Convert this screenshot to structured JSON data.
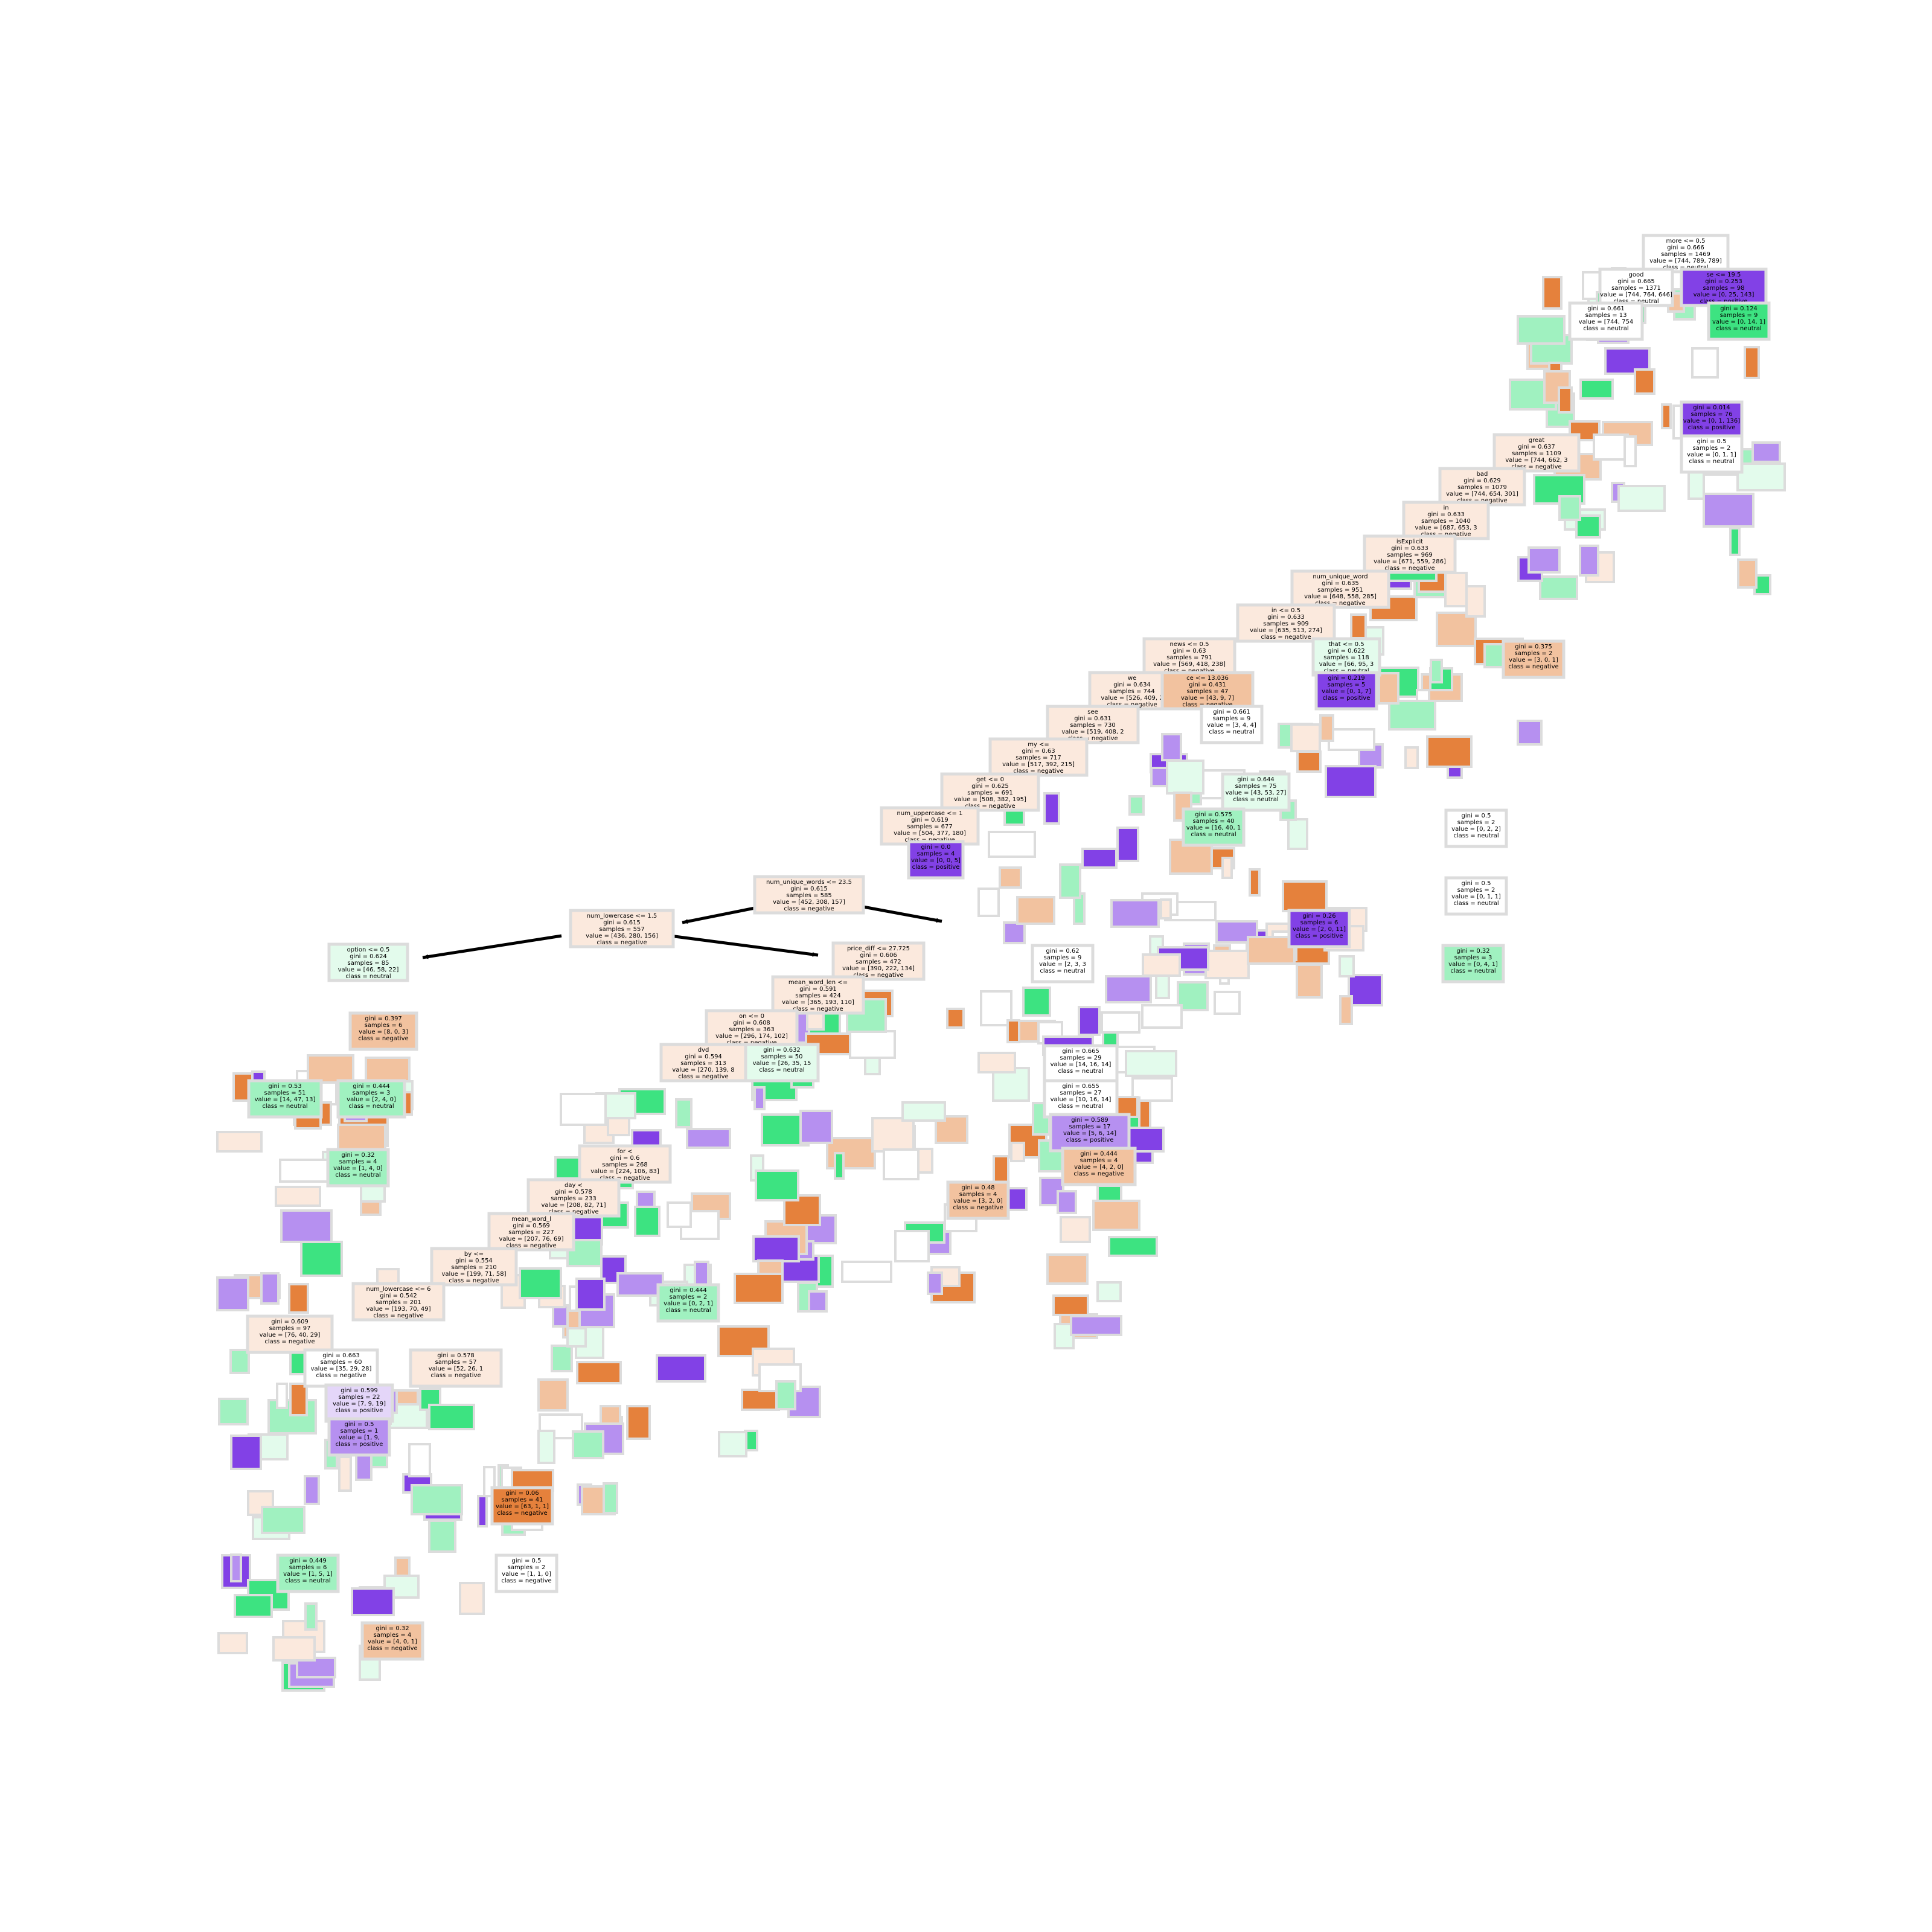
{
  "colors": {
    "negative_light": "#fbe9dd",
    "negative_mid": "#f2c29f",
    "negative_strong": "#e5813c",
    "neutral_light": "#e3fbec",
    "neutral_mid": "#a0f1c0",
    "neutral_strong": "#3de381",
    "positive_light": "#e4d6f9",
    "positive_mid": "#b690f0",
    "positive_strong": "#8241e6",
    "white": "#ffffff",
    "edge": "#000000"
  },
  "nodes": [
    {
      "id": "root",
      "lines": [
        "more <= 0.5",
        "gini = 0.666",
        "samples = 1469",
        "value = [744, 789, 789]",
        "class = neutral"
      ],
      "cls": "white"
    },
    {
      "id": "good",
      "lines": [
        "good",
        "gini = 0.665",
        "samples = 1371",
        "value = [744, 764, 646]",
        "class = neutral"
      ],
      "cls": "white"
    },
    {
      "id": "r_pos",
      "lines": [
        "se <= 19.5",
        "gini = 0.253",
        "samples = 98",
        "value = [0, 25, 143]",
        "class = positive"
      ],
      "cls": "positive_strong"
    },
    {
      "id": "g661",
      "lines": [
        "gini = 0.661",
        "samples = 13",
        "value = [744, 754",
        "class = neutral"
      ],
      "cls": "white"
    },
    {
      "id": "g124",
      "lines": [
        "gini = 0.124",
        "samples = 9",
        "value = [0, 14, 1]",
        "class = neutral"
      ],
      "cls": "neutral_strong"
    },
    {
      "id": "g014",
      "lines": [
        "gini = 0.014",
        "samples = 76",
        "value = [0, 1, 136]",
        "class = positive"
      ],
      "cls": "positive_strong"
    },
    {
      "id": "g05a",
      "lines": [
        "gini = 0.5",
        "samples = 2",
        "value = [0, 1, 1]",
        "class = neutral"
      ],
      "cls": "white"
    },
    {
      "id": "great",
      "lines": [
        "great",
        "gini = 0.637",
        "samples = 1109",
        "value = [744, 662, 3",
        "class = negative"
      ],
      "cls": "negative_light"
    },
    {
      "id": "bad",
      "lines": [
        "bad",
        "gini = 0.629",
        "samples = 1079",
        "value = [744, 654, 301]",
        "class = negative"
      ],
      "cls": "negative_light"
    },
    {
      "id": "in1",
      "lines": [
        "in",
        "gini = 0.633",
        "samples = 1040",
        "value = [687, 653, 3",
        "class = negative"
      ],
      "cls": "negative_light"
    },
    {
      "id": "isExplicit",
      "lines": [
        "isExplicit",
        "gini = 0.633",
        "samples = 969",
        "value = [671, 559, 286]",
        "class = negative"
      ],
      "cls": "negative_light"
    },
    {
      "id": "nuw1",
      "lines": [
        "num_unique_word",
        "gini = 0.635",
        "samples = 951",
        "value = [648, 558, 285]",
        "class = negative"
      ],
      "cls": "negative_light"
    },
    {
      "id": "in2",
      "lines": [
        "in <= 0.5",
        "gini = 0.633",
        "samples = 909",
        "value = [635, 513, 274]",
        "class = negative"
      ],
      "cls": "negative_light"
    },
    {
      "id": "news",
      "lines": [
        "news <= 0.5",
        "gini = 0.63",
        "samples = 791",
        "value = [569, 418, 238]",
        "class = negative"
      ],
      "cls": "negative_light"
    },
    {
      "id": "that",
      "lines": [
        "that <= 0.5",
        "gini = 0.622",
        "samples = 118",
        "value = [66, 95, 3",
        "class = neutral"
      ],
      "cls": "neutral_light"
    },
    {
      "id": "we",
      "lines": [
        "we",
        "gini = 0.634",
        "samples = 744",
        "value = [526, 409, 2",
        "class = negative"
      ],
      "cls": "negative_light"
    },
    {
      "id": "c13036",
      "lines": [
        "ce <= 13.036",
        "gini = 0.431",
        "samples = 47",
        "value = [43, 9, 7]",
        "class = negative"
      ],
      "cls": "negative_mid"
    },
    {
      "id": "g219",
      "lines": [
        "gini = 0.219",
        "samples = 5",
        "value = [0, 1, 7]",
        "class = positive"
      ],
      "cls": "positive_strong"
    },
    {
      "id": "see",
      "lines": [
        "see",
        "gini = 0.631",
        "samples = 730",
        "value = [519, 408, 2",
        "class = negative"
      ],
      "cls": "negative_light"
    },
    {
      "id": "g661b",
      "lines": [
        "gini = 0.661",
        "samples = 9",
        "value = [3, 4, 4]",
        "class = neutral"
      ],
      "cls": "white"
    },
    {
      "id": "my",
      "lines": [
        "my <=",
        "gini = 0.63",
        "samples = 717",
        "value = [517, 392, 215]",
        "class = negative"
      ],
      "cls": "negative_light"
    },
    {
      "id": "get",
      "lines": [
        "get <= 0",
        "gini = 0.625",
        "samples = 691",
        "value = [508, 382, 195]",
        "class = negative"
      ],
      "cls": "negative_light"
    },
    {
      "id": "g644",
      "lines": [
        "gini = 0.644",
        "samples = 75",
        "value = [43, 53, 27]",
        "class = neutral"
      ],
      "cls": "neutral_light"
    },
    {
      "id": "nup1",
      "lines": [
        "num_uppercase <= 1",
        "gini = 0.619",
        "samples = 677",
        "value = [504, 377, 180]",
        "class = negative"
      ],
      "cls": "negative_light"
    },
    {
      "id": "g575",
      "lines": [
        "gini = 0.575",
        "samples = 40",
        "value = [16, 40, 1",
        "class = neutral"
      ],
      "cls": "neutral_mid"
    },
    {
      "id": "g00pos",
      "lines": [
        "gini = 0.0",
        "samples = 4",
        "value = [0, 0, 5]",
        "class = positive"
      ],
      "cls": "positive_strong"
    },
    {
      "id": "nuw235",
      "lines": [
        "num_unique_words <= 23.5",
        "gini = 0.615",
        "samples = 585",
        "value = [452, 308, 157]",
        "class = negative"
      ],
      "cls": "negative_light"
    },
    {
      "id": "nlc15",
      "lines": [
        "num_lowercase <= 1.5",
        "gini = 0.615",
        "samples = 557",
        "value = [436, 280, 156]",
        "class = negative"
      ],
      "cls": "negative_light"
    },
    {
      "id": "pd2772",
      "lines": [
        "price_diff <= 27.725",
        "gini = 0.606",
        "samples = 472",
        "value = [390, 222, 134]",
        "class = negative"
      ],
      "cls": "negative_light"
    },
    {
      "id": "option",
      "lines": [
        "option <= 0.5",
        "gini = 0.624",
        "samples = 85",
        "value = [46, 58, 22]",
        "class = neutral"
      ],
      "cls": "neutral_light"
    },
    {
      "id": "mwl",
      "lines": [
        "mean_word_len <=",
        "gini = 0.591",
        "samples = 424",
        "value = [365, 193, 110]",
        "class = negative"
      ],
      "cls": "negative_light"
    },
    {
      "id": "on",
      "lines": [
        "on <= 0",
        "gini = 0.608",
        "samples = 363",
        "value = [296, 174, 102]",
        "class = negative"
      ],
      "cls": "negative_light"
    },
    {
      "id": "dvd",
      "lines": [
        "dvd",
        "gini = 0.594",
        "samples = 313",
        "value = [270, 139, 8",
        "class = negative"
      ],
      "cls": "negative_light"
    },
    {
      "id": "g632",
      "lines": [
        "gini = 0.632",
        "samples = 50",
        "value = [26, 35, 15",
        "class = neutral"
      ],
      "cls": "neutral_light"
    },
    {
      "id": "for",
      "lines": [
        "for <",
        "gini = 0.6",
        "samples = 268",
        "value = [224, 106, 83]",
        "class = negative"
      ],
      "cls": "negative_light"
    },
    {
      "id": "day",
      "lines": [
        "day <",
        "gini = 0.578",
        "samples = 233",
        "value = [208, 82, 71]",
        "class = negative"
      ],
      "cls": "negative_light"
    },
    {
      "id": "mwl2",
      "lines": [
        "mean_word_l",
        "gini = 0.569",
        "samples = 227",
        "value = [207, 76, 69]",
        "class = negative"
      ],
      "cls": "negative_light"
    },
    {
      "id": "by",
      "lines": [
        "by <=",
        "gini = 0.554",
        "samples = 210",
        "value = [199, 71, 58]",
        "class = negative"
      ],
      "cls": "negative_light"
    },
    {
      "id": "nlc6",
      "lines": [
        "num_lowercase <= 6",
        "gini = 0.542",
        "samples = 201",
        "value = [193, 70, 49]",
        "class = negative"
      ],
      "cls": "negative_light"
    },
    {
      "id": "g609",
      "lines": [
        "gini = 0.609",
        "samples = 97",
        "value = [76, 40, 29]",
        "class = negative"
      ],
      "cls": "negative_light"
    },
    {
      "id": "g663",
      "lines": [
        "gini = 0.663",
        "samples = 60",
        "value = [35, 29, 28]",
        "class = negative"
      ],
      "cls": "white"
    },
    {
      "id": "g578",
      "lines": [
        "gini = 0.578",
        "samples = 57",
        "value = [52, 26, 1",
        "class = negative"
      ],
      "cls": "negative_light"
    },
    {
      "id": "g599",
      "lines": [
        "gini = 0.599",
        "samples = 22",
        "value = [7, 9, 19]",
        "class = positive"
      ],
      "cls": "positive_light"
    },
    {
      "id": "g05b",
      "lines": [
        "gini = 0.5",
        "samples = 1",
        "value = [1, 9,",
        "class = positive"
      ],
      "cls": "positive_mid"
    },
    {
      "id": "g397",
      "lines": [
        "gini = 0.397",
        "samples = 6",
        "value = [8, 0, 3]",
        "class = negative"
      ],
      "cls": "negative_mid"
    },
    {
      "id": "g444a",
      "lines": [
        "gini = 0.444",
        "samples = 3",
        "value = [2, 4, 0]",
        "class = neutral"
      ],
      "cls": "neutral_mid"
    },
    {
      "id": "g53",
      "lines": [
        "gini = 0.53",
        "samples = 51",
        "value = [14, 47, 13]",
        "class = neutral"
      ],
      "cls": "neutral_mid"
    },
    {
      "id": "g32a",
      "lines": [
        "gini = 0.32",
        "samples = 4",
        "value = [1, 4, 0]",
        "class = neutral"
      ],
      "cls": "neutral_mid"
    },
    {
      "id": "g06",
      "lines": [
        "gini = 0.06",
        "samples = 41",
        "value = [63, 1, 1]",
        "class = negative"
      ],
      "cls": "negative_strong"
    },
    {
      "id": "g449",
      "lines": [
        "gini = 0.449",
        "samples = 6",
        "value = [1, 5, 1]",
        "class = neutral"
      ],
      "cls": "neutral_mid"
    },
    {
      "id": "g32b",
      "lines": [
        "gini = 0.32",
        "samples = 4",
        "value = [4, 0, 1]",
        "class = negative"
      ],
      "cls": "negative_mid"
    },
    {
      "id": "g05c",
      "lines": [
        "gini = 0.5",
        "samples = 2",
        "value = [1, 1, 0]",
        "class = negative"
      ],
      "cls": "white"
    },
    {
      "id": "g444b",
      "lines": [
        "gini = 0.444",
        "samples = 2",
        "value = [0, 2, 1]",
        "class = neutral"
      ],
      "cls": "neutral_mid"
    },
    {
      "id": "g62",
      "lines": [
        "gini = 0.62",
        "samples = 9",
        "value = [2, 3, 3",
        "class = neutral"
      ],
      "cls": "white"
    },
    {
      "id": "g665",
      "lines": [
        "gini = 0.665",
        "samples = 29",
        "value = [14, 16, 14]",
        "class = neutral"
      ],
      "cls": "white"
    },
    {
      "id": "g655",
      "lines": [
        "gini = 0.655",
        "samples = 27",
        "value = [10, 16, 14]",
        "class = neutral"
      ],
      "cls": "white"
    },
    {
      "id": "g589",
      "lines": [
        "gini = 0.589",
        "samples = 17",
        "value = [5, 6, 14]",
        "class = positive"
      ],
      "cls": "positive_mid"
    },
    {
      "id": "g444c",
      "lines": [
        "gini = 0.444",
        "samples = 4",
        "value = [4, 2, 0]",
        "class = negative"
      ],
      "cls": "negative_mid"
    },
    {
      "id": "g48",
      "lines": [
        "gini = 0.48",
        "samples = 4",
        "value = [3, 2, 0]",
        "class = negative"
      ],
      "cls": "negative_mid"
    },
    {
      "id": "g26",
      "lines": [
        "gini = 0.26",
        "samples = 6",
        "value = [2, 0, 11]",
        "class = positive"
      ],
      "cls": "positive_strong"
    },
    {
      "id": "g375",
      "lines": [
        "gini = 0.375",
        "samples = 2",
        "value = [3, 0, 1]",
        "class = negative"
      ],
      "cls": "negative_mid"
    },
    {
      "id": "g05d",
      "lines": [
        "gini = 0.5",
        "samples = 2",
        "value = [0, 2, 2]",
        "class = neutral"
      ],
      "cls": "white"
    },
    {
      "id": "g05e",
      "lines": [
        "gini = 0.5",
        "samples = 2",
        "value = [0, 1, 1]",
        "class = neutral"
      ],
      "cls": "white"
    },
    {
      "id": "g32c",
      "lines": [
        "gini = 0.32",
        "samples = 3",
        "value = [0, 4, 1]",
        "class = neutral"
      ],
      "cls": "neutral_mid"
    }
  ]
}
